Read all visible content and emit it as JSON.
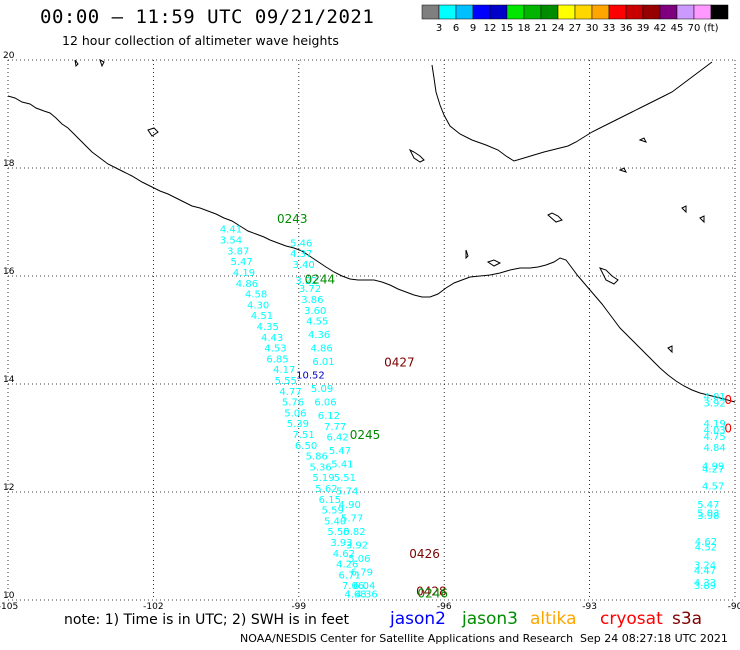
{
  "header": {
    "title": "00:00 – 11:59 UTC 09/21/2021",
    "subtitle": "12 hour collection of altimeter wave heights"
  },
  "legend": {
    "colors": [
      "#7f7f7f",
      "#00ffff",
      "#00bfff",
      "#0000ff",
      "#0000c8",
      "#00e600",
      "#00b400",
      "#008c00",
      "#ffff00",
      "#ffd700",
      "#ffa500",
      "#ff0000",
      "#c80000",
      "#960000",
      "#7f007f",
      "#cc99ff",
      "#ff99ff",
      "#000000"
    ],
    "labels": [
      "3",
      "6",
      "9",
      "12",
      "15",
      "18",
      "21",
      "24",
      "27",
      "30",
      "33",
      "36",
      "39",
      "42",
      "45",
      "70",
      "(ft)"
    ]
  },
  "map": {
    "lon_range": [
      -105,
      -90
    ],
    "lat_range": [
      10,
      20
    ],
    "lon_ticks": [
      "-105",
      "-102",
      "-99",
      "-96",
      "-93",
      "-90"
    ],
    "lat_ticks": [
      "20",
      "18",
      "16",
      "14",
      "12",
      "10"
    ]
  },
  "chart_data": {
    "type": "scatter",
    "title": "00:00 – 11:59 UTC 09/21/2021",
    "subtitle": "12 hour collection of altimeter wave heights",
    "units": "ft",
    "xlim": [
      -105,
      -90
    ],
    "ylim": [
      10,
      20
    ],
    "time_labels": [
      {
        "text": "0243",
        "lon": -99.45,
        "lat": 16.98,
        "color": "#008c00"
      },
      {
        "text": "0244",
        "lon": -98.88,
        "lat": 15.86,
        "color": "#008c00"
      },
      {
        "text": "0427",
        "lon": -97.24,
        "lat": 14.32,
        "color": "#7f0000"
      },
      {
        "text": "0245",
        "lon": -97.95,
        "lat": 12.98,
        "color": "#008c00"
      },
      {
        "text": "0426",
        "lon": -96.72,
        "lat": 10.78,
        "color": "#7f0000"
      },
      {
        "text": "0428",
        "lon": -96.58,
        "lat": 10.08,
        "color": "#7f0000"
      },
      {
        "text": "0246",
        "lon": -96.55,
        "lat": 10.05,
        "color": "#008c00"
      },
      {
        "text": "0",
        "lon": -90.22,
        "lat": 13.63,
        "color": "#ff0000"
      },
      {
        "text": "0",
        "lon": -90.22,
        "lat": 13.1,
        "color": "#ff0000"
      }
    ],
    "series": [
      {
        "name": "track1",
        "points": [
          {
            "lon": -100.4,
            "lat": 16.81,
            "v": "4.41",
            "c": "#00ffff"
          },
          {
            "lon": -100.4,
            "lat": 16.6,
            "v": "3.54",
            "c": "#00ffff"
          },
          {
            "lon": -100.25,
            "lat": 16.4,
            "v": "3.87",
            "c": "#00ffff"
          },
          {
            "lon": -100.18,
            "lat": 16.2,
            "v": "5.47",
            "c": "#00ffff"
          },
          {
            "lon": -100.13,
            "lat": 16.0,
            "v": "4.19",
            "c": "#00ffff"
          },
          {
            "lon": -100.07,
            "lat": 15.8,
            "v": "4.86",
            "c": "#00ffff"
          },
          {
            "lon": -99.88,
            "lat": 15.6,
            "v": "4.58",
            "c": "#00ffff"
          },
          {
            "lon": -99.84,
            "lat": 15.4,
            "v": "4.30",
            "c": "#00ffff"
          },
          {
            "lon": -99.76,
            "lat": 15.2,
            "v": "4.51",
            "c": "#00ffff"
          },
          {
            "lon": -99.64,
            "lat": 15.0,
            "v": "4.35",
            "c": "#00ffff"
          },
          {
            "lon": -99.55,
            "lat": 14.8,
            "v": "4.43",
            "c": "#00ffff"
          },
          {
            "lon": -99.48,
            "lat": 14.6,
            "v": "4.53",
            "c": "#00ffff"
          },
          {
            "lon": -99.44,
            "lat": 14.4,
            "v": "6.85",
            "c": "#00ffff"
          },
          {
            "lon": -99.3,
            "lat": 14.2,
            "v": "4.17",
            "c": "#00ffff"
          },
          {
            "lon": -99.27,
            "lat": 14.0,
            "v": "5.55",
            "c": "#00ffff"
          },
          {
            "lon": -99.17,
            "lat": 13.8,
            "v": "4.77",
            "c": "#00ffff"
          },
          {
            "lon": -99.12,
            "lat": 13.6,
            "v": "5.76",
            "c": "#00ffff"
          },
          {
            "lon": -99.07,
            "lat": 13.4,
            "v": "5.06",
            "c": "#00ffff"
          },
          {
            "lon": -99.02,
            "lat": 13.2,
            "v": "5.39",
            "c": "#00ffff"
          },
          {
            "lon": -98.9,
            "lat": 13.0,
            "v": "7.51",
            "c": "#00ffff"
          },
          {
            "lon": -98.85,
            "lat": 12.8,
            "v": "6.50",
            "c": "#00ffff"
          },
          {
            "lon": -98.63,
            "lat": 12.6,
            "v": "5.86",
            "c": "#00ffff"
          },
          {
            "lon": -98.55,
            "lat": 12.4,
            "v": "5.36",
            "c": "#00ffff"
          },
          {
            "lon": -98.49,
            "lat": 12.2,
            "v": "5.19",
            "c": "#00ffff"
          },
          {
            "lon": -98.43,
            "lat": 12.0,
            "v": "5.62",
            "c": "#00ffff"
          },
          {
            "lon": -98.36,
            "lat": 11.8,
            "v": "6.15",
            "c": "#00ffff"
          },
          {
            "lon": -98.3,
            "lat": 11.6,
            "v": "5.59",
            "c": "#00ffff"
          },
          {
            "lon": -98.25,
            "lat": 11.4,
            "v": "5.40",
            "c": "#00ffff"
          },
          {
            "lon": -98.18,
            "lat": 11.2,
            "v": "5.50",
            "c": "#00ffff"
          },
          {
            "lon": -98.12,
            "lat": 11.0,
            "v": "3.93",
            "c": "#00ffff"
          },
          {
            "lon": -98.07,
            "lat": 10.8,
            "v": "4.62",
            "c": "#00ffff"
          },
          {
            "lon": -98.0,
            "lat": 10.6,
            "v": "4.26",
            "c": "#00ffff"
          },
          {
            "lon": -97.95,
            "lat": 10.4,
            "v": "6.71",
            "c": "#00ffff"
          },
          {
            "lon": -97.88,
            "lat": 10.2,
            "v": "7.06",
            "c": "#00ffff"
          },
          {
            "lon": -97.83,
            "lat": 10.05,
            "v": "4.68",
            "c": "#00ffff"
          }
        ]
      },
      {
        "name": "track2",
        "points": [
          {
            "lon": -98.95,
            "lat": 16.55,
            "v": "5.46",
            "c": "#00ffff"
          },
          {
            "lon": -98.95,
            "lat": 16.35,
            "v": "4.37",
            "c": "#00ffff"
          },
          {
            "lon": -98.9,
            "lat": 16.15,
            "v": "3.40",
            "c": "#00ffff"
          },
          {
            "lon": -98.84,
            "lat": 15.85,
            "v": "3.22",
            "c": "#00ffff"
          },
          {
            "lon": -98.77,
            "lat": 15.7,
            "v": "3.72",
            "c": "#00ffff"
          },
          {
            "lon": -98.72,
            "lat": 15.5,
            "v": "3.86",
            "c": "#00ffff"
          },
          {
            "lon": -98.66,
            "lat": 15.3,
            "v": "3.60",
            "c": "#00ffff"
          },
          {
            "lon": -98.62,
            "lat": 15.1,
            "v": "4.55",
            "c": "#00ffff"
          },
          {
            "lon": -98.58,
            "lat": 14.85,
            "v": "4.36",
            "c": "#00ffff"
          },
          {
            "lon": -98.53,
            "lat": 14.6,
            "v": "4.86",
            "c": "#00ffff"
          },
          {
            "lon": -98.49,
            "lat": 14.35,
            "v": "6.01",
            "c": "#00ffff"
          },
          {
            "lon": -98.76,
            "lat": 14.1,
            "v": "10.52",
            "c": "#0000c8"
          },
          {
            "lon": -98.52,
            "lat": 13.85,
            "v": "5.09",
            "c": "#00ffff"
          },
          {
            "lon": -98.45,
            "lat": 13.6,
            "v": "6.06",
            "c": "#00ffff"
          },
          {
            "lon": -98.38,
            "lat": 13.35,
            "v": "6.12",
            "c": "#00ffff"
          },
          {
            "lon": -98.25,
            "lat": 13.15,
            "v": "7.77",
            "c": "#00ffff"
          },
          {
            "lon": -98.2,
            "lat": 12.95,
            "v": "6.42",
            "c": "#00ffff"
          },
          {
            "lon": -98.15,
            "lat": 12.7,
            "v": "5.47",
            "c": "#00ffff"
          },
          {
            "lon": -98.1,
            "lat": 12.45,
            "v": "5.41",
            "c": "#00ffff"
          },
          {
            "lon": -98.05,
            "lat": 12.2,
            "v": "5.51",
            "c": "#00ffff"
          },
          {
            "lon": -98.0,
            "lat": 11.95,
            "v": "5.74",
            "c": "#00ffff"
          },
          {
            "lon": -97.95,
            "lat": 11.7,
            "v": "4.90",
            "c": "#00ffff"
          },
          {
            "lon": -97.9,
            "lat": 11.45,
            "v": "5.77",
            "c": "#00ffff"
          },
          {
            "lon": -97.85,
            "lat": 11.2,
            "v": "5.82",
            "c": "#00ffff"
          },
          {
            "lon": -97.8,
            "lat": 10.95,
            "v": "3.92",
            "c": "#00ffff"
          },
          {
            "lon": -97.75,
            "lat": 10.7,
            "v": "5.06",
            "c": "#00ffff"
          },
          {
            "lon": -97.7,
            "lat": 10.45,
            "v": "6.79",
            "c": "#00ffff"
          },
          {
            "lon": -97.65,
            "lat": 10.2,
            "v": "6.04",
            "c": "#00ffff"
          },
          {
            "lon": -97.6,
            "lat": 10.05,
            "v": "4.36",
            "c": "#00ffff"
          }
        ]
      },
      {
        "name": "track3",
        "points": [
          {
            "lon": -90.42,
            "lat": 13.7,
            "v": "4.01",
            "c": "#00ffff"
          },
          {
            "lon": -90.42,
            "lat": 13.58,
            "v": "3.92",
            "c": "#00ffff"
          },
          {
            "lon": -90.42,
            "lat": 13.2,
            "v": "4.19",
            "c": "#00ffff"
          },
          {
            "lon": -90.42,
            "lat": 13.08,
            "v": "4.03",
            "c": "#00ffff"
          },
          {
            "lon": -90.42,
            "lat": 12.96,
            "v": "4.75",
            "c": "#00ffff"
          },
          {
            "lon": -90.42,
            "lat": 12.76,
            "v": "4.84",
            "c": "#00ffff"
          },
          {
            "lon": -90.45,
            "lat": 12.42,
            "v": "4.99",
            "c": "#00ffff"
          },
          {
            "lon": -90.45,
            "lat": 12.36,
            "v": "4.27",
            "c": "#00ffff"
          },
          {
            "lon": -90.45,
            "lat": 12.05,
            "v": "4.57",
            "c": "#00ffff"
          },
          {
            "lon": -90.55,
            "lat": 11.7,
            "v": "5.47",
            "c": "#00ffff"
          },
          {
            "lon": -90.55,
            "lat": 11.55,
            "v": "5.03",
            "c": "#00ffff"
          },
          {
            "lon": -90.55,
            "lat": 11.5,
            "v": "3.98",
            "c": "#00ffff"
          },
          {
            "lon": -90.6,
            "lat": 11.02,
            "v": "4.62",
            "c": "#00ffff"
          },
          {
            "lon": -90.6,
            "lat": 10.92,
            "v": "4.52",
            "c": "#00ffff"
          },
          {
            "lon": -90.62,
            "lat": 10.58,
            "v": "3.24",
            "c": "#00ffff"
          },
          {
            "lon": -90.62,
            "lat": 10.48,
            "v": "4.47",
            "c": "#00ffff"
          },
          {
            "lon": -90.62,
            "lat": 10.26,
            "v": "4.33",
            "c": "#00ffff"
          },
          {
            "lon": -90.62,
            "lat": 10.2,
            "v": "3.89",
            "c": "#00ffff"
          }
        ]
      }
    ]
  },
  "footer": {
    "note": "note: 1) Time is in UTC; 2) SWH is in feet",
    "satellites": [
      {
        "name": "jason2",
        "color": "#0000ff"
      },
      {
        "name": "jason3",
        "color": "#008c00"
      },
      {
        "name": "altika",
        "color": "#ffa500"
      },
      {
        "name": "cryosat",
        "color": "#ff0000"
      },
      {
        "name": "s3a",
        "color": "#7f0000"
      }
    ],
    "credit": "NOAA/NESDIS Center for Satellite Applications and Research",
    "timestamp": "Sep 24 08:27:18 UTC 2021"
  }
}
